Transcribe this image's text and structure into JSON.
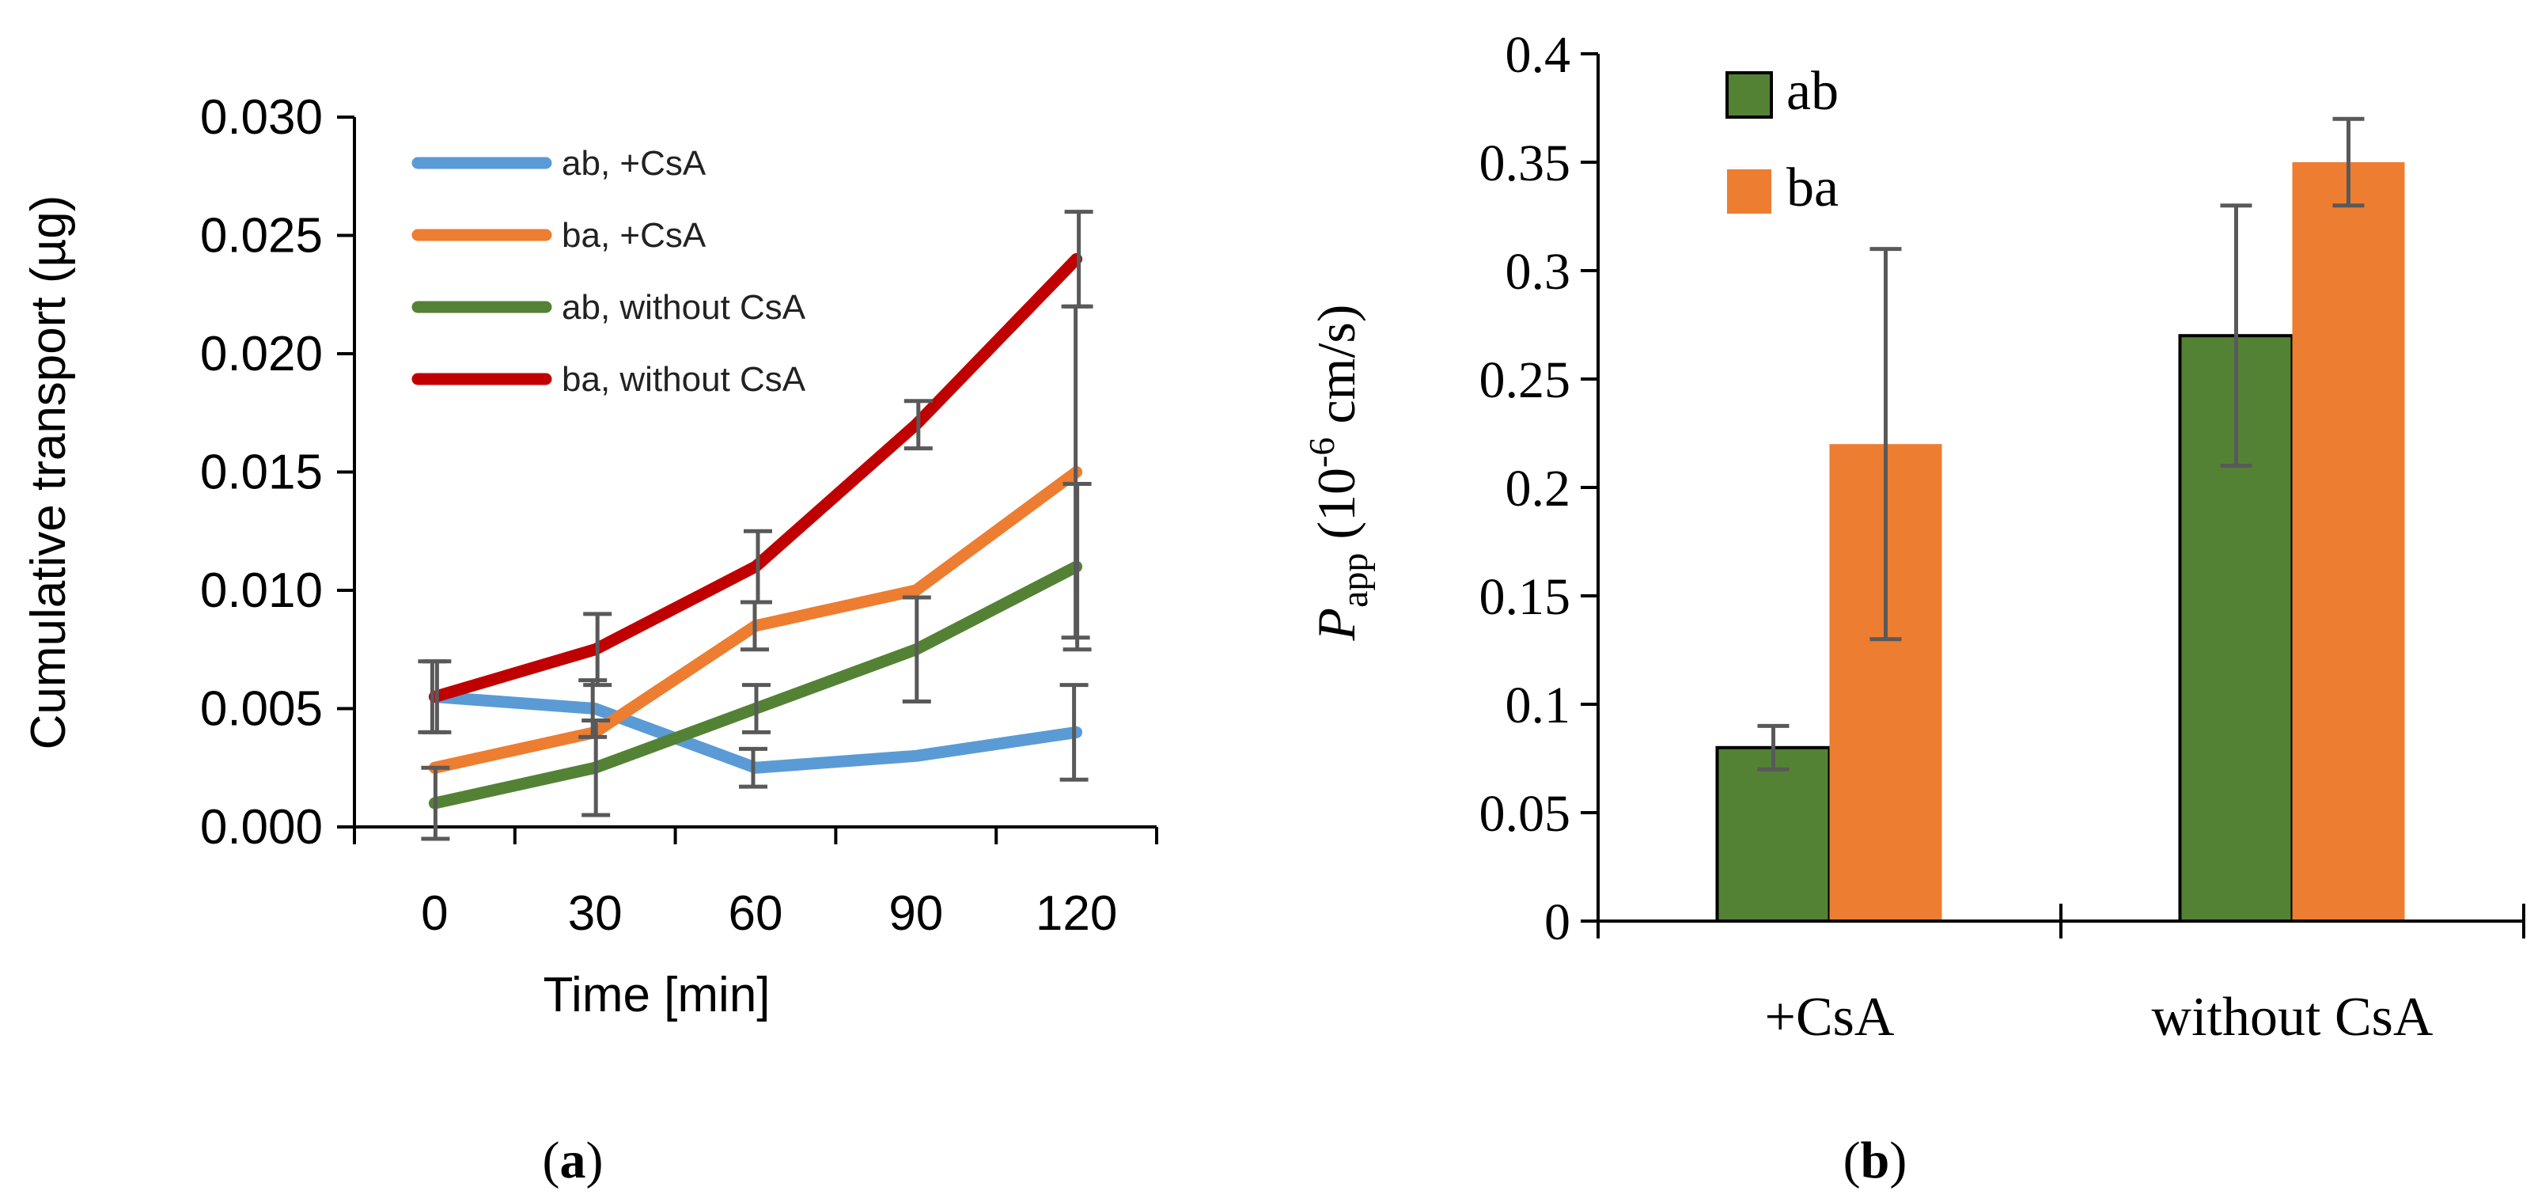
{
  "chart_data": [
    {
      "type": "line",
      "panel_label": "a",
      "xlabel": "Time [min]",
      "ylabel": "Cumulative transport (µg)",
      "x": [
        0,
        30,
        60,
        90,
        120
      ],
      "xlim": [
        -15,
        135
      ],
      "ylim": [
        0,
        0.03
      ],
      "x_ticks": [
        0,
        30,
        60,
        90,
        120
      ],
      "x_tick_labels": [
        "0",
        "30",
        "60",
        "90",
        "120"
      ],
      "y_ticks": [
        0,
        0.005,
        0.01,
        0.015,
        0.02,
        0.025,
        0.03
      ],
      "y_tick_labels": [
        "0.000",
        "0.005",
        "0.010",
        "0.015",
        "0.020",
        "0.025",
        "0.030"
      ],
      "grid": false,
      "legend_position": "top-left",
      "series": [
        {
          "name": "ab, +CsA",
          "color": "#5b9bd5",
          "values": [
            0.0055,
            0.005,
            0.0025,
            0.003,
            0.004
          ],
          "errors": [
            0.0015,
            0.0012,
            0.0008,
            0.0,
            0.002
          ]
        },
        {
          "name": "ba, +CsA",
          "color": "#ed7d31",
          "values": [
            0.0025,
            0.004,
            0.0085,
            0.01,
            0.015
          ],
          "errors": [
            0.0,
            0.0,
            0.001,
            0.0,
            0.007
          ]
        },
        {
          "name": "ab, without CsA",
          "color": "#548235",
          "values": [
            0.001,
            0.0025,
            0.005,
            0.0075,
            0.011
          ],
          "errors": [
            0.0015,
            0.002,
            0.001,
            0.0022,
            0.0035
          ]
        },
        {
          "name": "ba, without CsA",
          "color": "#c00000",
          "values": [
            0.0055,
            0.0075,
            0.011,
            0.017,
            0.024
          ],
          "errors": [
            0.0015,
            0.0015,
            0.0015,
            0.001,
            0.002
          ]
        }
      ]
    },
    {
      "type": "bar",
      "panel_label": "b",
      "categories": [
        "+CsA",
        "without CsA"
      ],
      "ylabel_main": "P",
      "ylabel_sub": "app",
      "ylabel_open": " (10",
      "ylabel_exp": "-6",
      "ylabel_unit": " cm/s)",
      "ylim": [
        0,
        0.4
      ],
      "y_ticks": [
        0,
        0.05,
        0.1,
        0.15,
        0.2,
        0.25,
        0.3,
        0.35,
        0.4
      ],
      "y_tick_labels": [
        "0",
        "0.05",
        "0.1",
        "0.15",
        "0.2",
        "0.25",
        "0.3",
        "0.35",
        "0.4"
      ],
      "grid": false,
      "legend_position": "top-left",
      "series": [
        {
          "name": "ab",
          "color": "#548235",
          "values": [
            0.08,
            0.27
          ],
          "errors": [
            0.01,
            0.06
          ]
        },
        {
          "name": "ba",
          "color": "#ed7d31",
          "values": [
            0.22,
            0.35
          ],
          "errors": [
            0.09,
            0.02
          ]
        }
      ]
    }
  ],
  "error_bar_color": "#595959"
}
